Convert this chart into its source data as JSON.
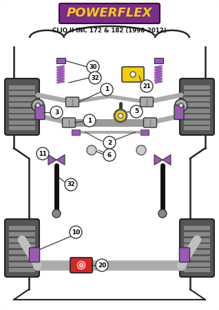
{
  "bg_color": "#ffffff",
  "title": "POWERFLEX",
  "title_bg": "#7b2d8b",
  "title_text_color": "#f5d000",
  "title_border": "#3a0a4a",
  "subtitle": "CLIO II INC 172 & 182 (1998-2012)",
  "tire_color": "#555555",
  "tire_tread": "#888888",
  "tire_inner": "#aaaaaa",
  "spring_color": "#9b59b6",
  "bushing_color": "#9b59b6",
  "bushing_gray": "#aaaaaa",
  "arm_color": "#999999",
  "chassis_color": "#c0c0c0",
  "strut_color": "#222222",
  "label_bg": "#ffffff",
  "label_border": "#333333",
  "yellow_part": "#f5d000",
  "red_part": "#dd2222",
  "figsize": [
    3.18,
    4.5
  ],
  "dpi": 100
}
